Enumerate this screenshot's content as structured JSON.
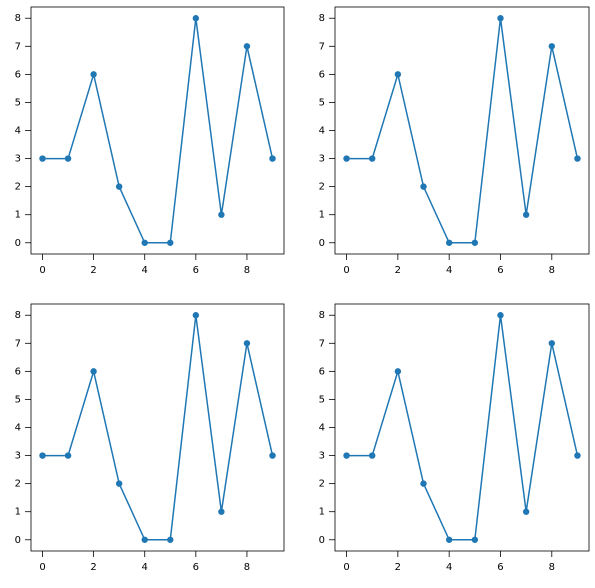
{
  "chart_data": [
    {
      "type": "line",
      "x": [
        0,
        1,
        2,
        3,
        4,
        5,
        6,
        7,
        8,
        9
      ],
      "values": [
        3,
        3,
        6,
        2,
        0,
        0,
        8,
        1,
        7,
        3
      ],
      "color": "#1f77b4",
      "xlim": [
        -0.45,
        9.45
      ],
      "ylim": [
        -0.4,
        8.4
      ],
      "xticks": [
        0,
        2,
        4,
        6,
        8
      ],
      "yticks": [
        0,
        1,
        2,
        3,
        4,
        5,
        6,
        7,
        8
      ]
    },
    {
      "type": "line",
      "x": [
        0,
        1,
        2,
        3,
        4,
        5,
        6,
        7,
        8,
        9
      ],
      "values": [
        3,
        3,
        6,
        2,
        0,
        0,
        8,
        1,
        7,
        3
      ],
      "color": "#1f77b4",
      "xlim": [
        -0.45,
        9.45
      ],
      "ylim": [
        -0.4,
        8.4
      ],
      "xticks": [
        0,
        2,
        4,
        6,
        8
      ],
      "yticks": [
        0,
        1,
        2,
        3,
        4,
        5,
        6,
        7,
        8
      ]
    },
    {
      "type": "line",
      "x": [
        0,
        1,
        2,
        3,
        4,
        5,
        6,
        7,
        8,
        9
      ],
      "values": [
        3,
        3,
        6,
        2,
        0,
        0,
        8,
        1,
        7,
        3
      ],
      "color": "#1f77b4",
      "xlim": [
        -0.45,
        9.45
      ],
      "ylim": [
        -0.4,
        8.4
      ],
      "xticks": [
        0,
        2,
        4,
        6,
        8
      ],
      "yticks": [
        0,
        1,
        2,
        3,
        4,
        5,
        6,
        7,
        8
      ]
    },
    {
      "type": "line",
      "x": [
        0,
        1,
        2,
        3,
        4,
        5,
        6,
        7,
        8,
        9
      ],
      "values": [
        3,
        3,
        6,
        2,
        0,
        0,
        8,
        1,
        7,
        3
      ],
      "color": "#1f77b4",
      "xlim": [
        -0.45,
        9.45
      ],
      "ylim": [
        -0.4,
        8.4
      ],
      "xticks": [
        0,
        2,
        4,
        6,
        8
      ],
      "yticks": [
        0,
        1,
        2,
        3,
        4,
        5,
        6,
        7,
        8
      ]
    }
  ]
}
